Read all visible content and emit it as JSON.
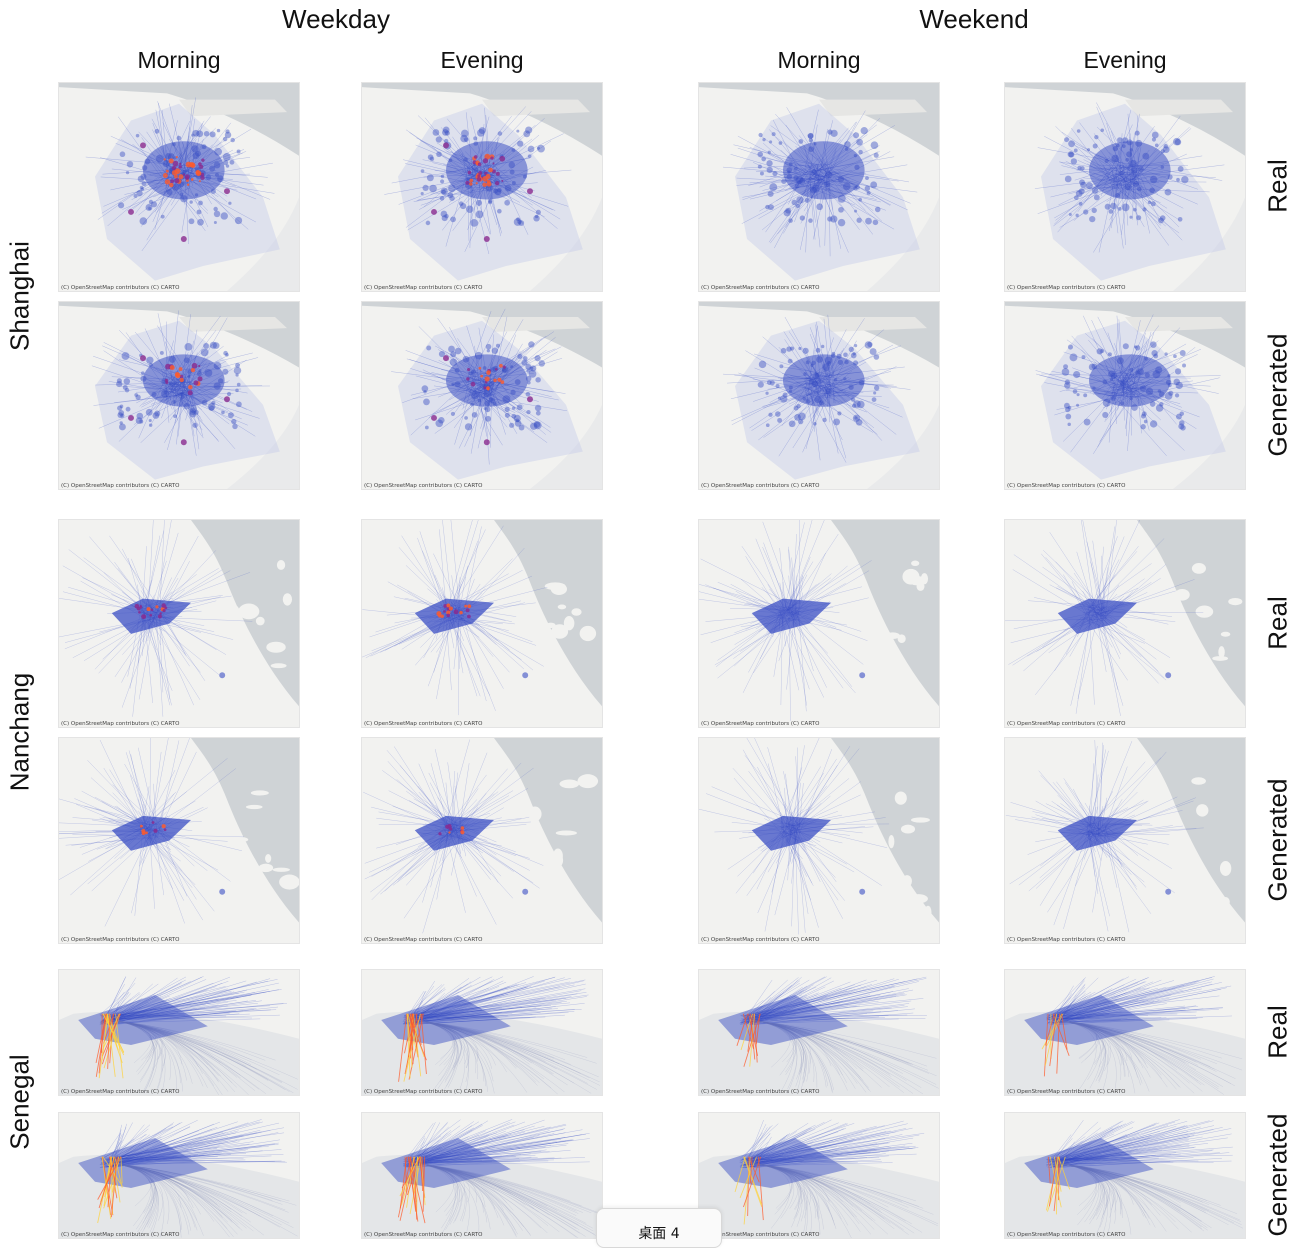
{
  "header": {
    "groups": [
      "Weekday",
      "Weekend"
    ],
    "columns": [
      "Morning",
      "Evening",
      "Morning",
      "Evening"
    ]
  },
  "rows": [
    {
      "city": "Shanghai",
      "types": [
        "Real",
        "Generated"
      ]
    },
    {
      "city": "Nanchang",
      "types": [
        "Real",
        "Generated"
      ]
    },
    {
      "city": "Senegal",
      "types": [
        "Real",
        "Generated"
      ]
    }
  ],
  "attribution": "(C) OpenStreetMap contributors (C) CARTO",
  "taskbar": {
    "label": "桌面 4"
  },
  "colors": {
    "flow_low": "#3a4fc4",
    "flow_mid": "#8a2a8f",
    "flow_high": "#ff5a2a",
    "flow_peak": "#ffd23a",
    "water": "#cfd3d6",
    "land": "#f2f2f0"
  }
}
